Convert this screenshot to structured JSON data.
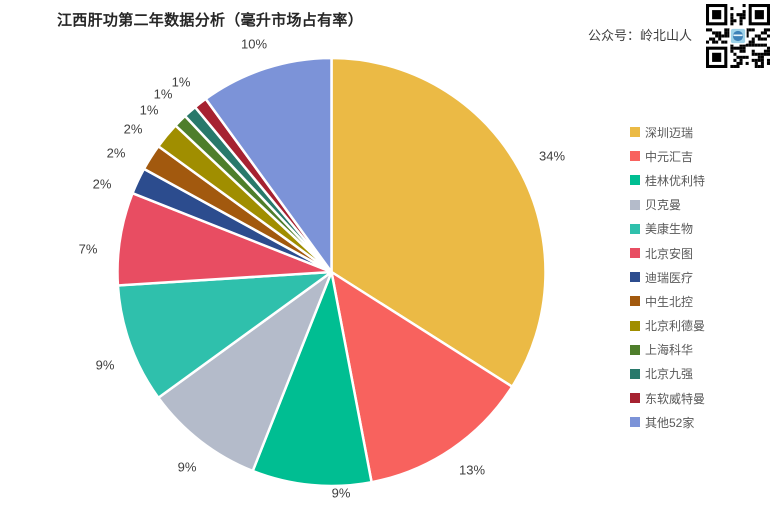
{
  "header": {
    "watermark": "公众号：岭北山人"
  },
  "chart_data": {
    "type": "pie",
    "title": "江西肝功第二年数据分析（毫升市场占有率）",
    "unit": "percent",
    "start_angle": "12-oclock-clockwise",
    "legend_position": "right",
    "series": [
      {
        "name": "深圳迈瑞",
        "value": 34,
        "color": "#EBBA45"
      },
      {
        "name": "中元汇吉",
        "value": 13,
        "color": "#F8625E"
      },
      {
        "name": "桂林优利特",
        "value": 9,
        "color": "#00BE92"
      },
      {
        "name": "贝克曼",
        "value": 9,
        "color": "#B4BBCA"
      },
      {
        "name": "美康生物",
        "value": 9,
        "color": "#2FC0AC"
      },
      {
        "name": "北京安图",
        "value": 7,
        "color": "#E84D62"
      },
      {
        "name": "迪瑞医疗",
        "value": 2,
        "color": "#2C4C8E"
      },
      {
        "name": "中生北控",
        "value": 2,
        "color": "#A2590E"
      },
      {
        "name": "北京利德曼",
        "value": 2,
        "color": "#A08E00"
      },
      {
        "name": "上海科华",
        "value": 1,
        "color": "#4E7E2B"
      },
      {
        "name": "北京九强",
        "value": 1,
        "color": "#28796B"
      },
      {
        "name": "东软威特曼",
        "value": 1,
        "color": "#A62231"
      },
      {
        "name": "其他52家",
        "value": 10,
        "color": "#7C93D8"
      }
    ],
    "labels": [
      "34%",
      "13%",
      "9%",
      "9%",
      "9%",
      "7%",
      "2%",
      "2%",
      "2%",
      "1%",
      "1%",
      "1%",
      "10%"
    ]
  }
}
